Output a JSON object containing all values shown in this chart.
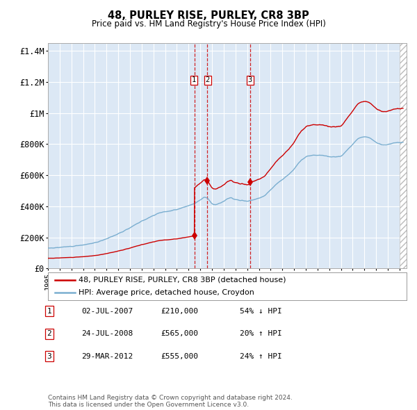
{
  "title": "48, PURLEY RISE, PURLEY, CR8 3BP",
  "subtitle": "Price paid vs. HM Land Registry's House Price Index (HPI)",
  "legend_label_red": "48, PURLEY RISE, PURLEY, CR8 3BP (detached house)",
  "legend_label_blue": "HPI: Average price, detached house, Croydon",
  "footer1": "Contains HM Land Registry data © Crown copyright and database right 2024.",
  "footer2": "This data is licensed under the Open Government Licence v3.0.",
  "transactions": [
    {
      "num": 1,
      "date": "02-JUL-2007",
      "price": 210000,
      "pct": "54%",
      "dir": "↓",
      "date_dec": 2007.5
    },
    {
      "num": 2,
      "date": "24-JUL-2008",
      "price": 565000,
      "pct": "20%",
      "dir": "↑",
      "date_dec": 2008.56
    },
    {
      "num": 3,
      "date": "29-MAR-2012",
      "price": 555000,
      "pct": "24%",
      "dir": "↑",
      "date_dec": 2012.24
    }
  ],
  "red_color": "#cc0000",
  "blue_color": "#7aaed0",
  "plot_bg": "#dce8f5",
  "grid_color": "#ffffff",
  "ylim": [
    0,
    1450000
  ],
  "xlim_start": 1995.0,
  "xlim_end": 2025.6,
  "hatch_start": 2025.0
}
